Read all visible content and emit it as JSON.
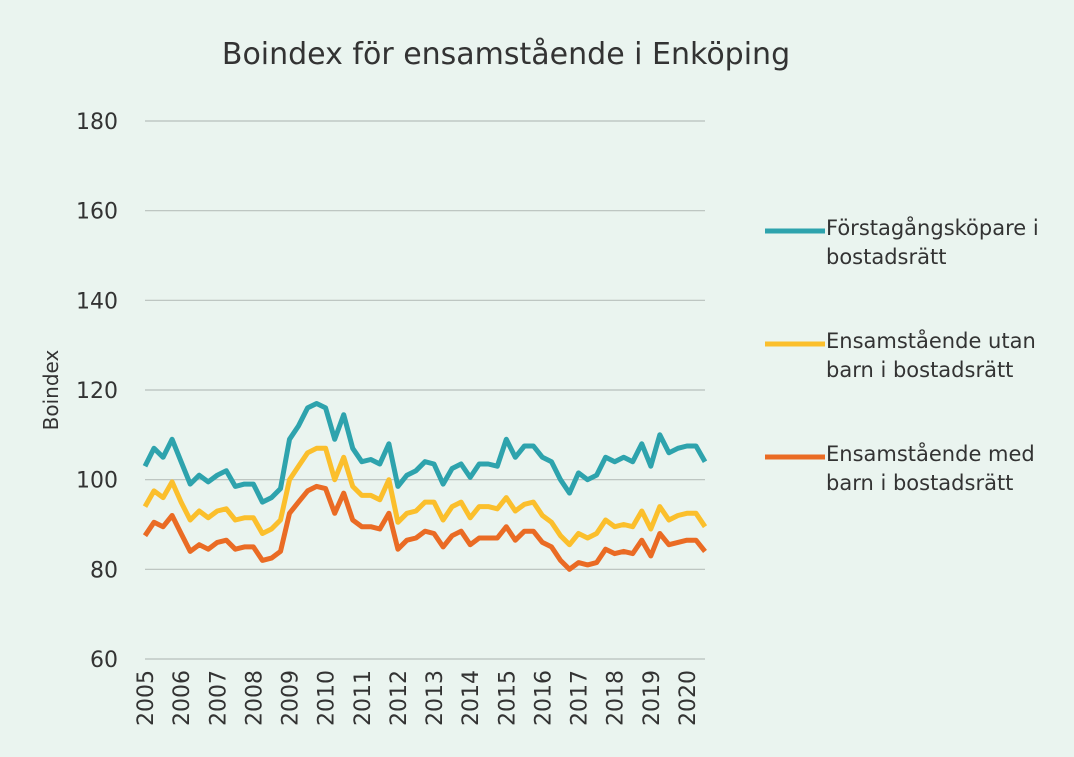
{
  "chart_data": {
    "type": "line",
    "title": "Boindex för ensamstående i Enköping",
    "y_label": "Boindex",
    "categories": [
      "2005",
      null,
      null,
      null,
      "2006",
      null,
      null,
      null,
      "2007",
      null,
      null,
      null,
      "2008",
      null,
      null,
      null,
      "2009",
      null,
      null,
      null,
      "2010",
      null,
      null,
      null,
      "2011",
      null,
      null,
      null,
      "2012",
      null,
      null,
      null,
      "2013",
      null,
      null,
      null,
      "2014",
      null,
      null,
      null,
      "2015",
      null,
      null,
      null,
      "2016",
      null,
      null,
      null,
      "2017",
      null,
      null,
      null,
      "2018",
      null,
      null,
      null,
      "2019",
      null,
      null,
      null,
      "2020",
      null,
      null
    ],
    "series": [
      {
        "name": "Förstagångsköpare i bostadsrätt",
        "color": "#2ea3ad",
        "values": [
          103,
          107,
          105,
          109,
          104,
          99,
          101,
          99.5,
          101,
          102,
          98.5,
          99,
          99,
          95,
          96,
          98,
          109,
          112,
          116,
          117,
          116,
          109,
          114.5,
          107,
          104,
          104.5,
          103.5,
          108,
          98.5,
          101,
          102,
          104,
          103.5,
          99,
          102.5,
          103.5,
          100.5,
          103.5,
          103.5,
          103,
          109,
          105,
          107.5,
          107.5,
          105,
          104,
          100,
          97,
          101.5,
          100,
          101,
          105,
          104,
          105,
          104,
          108,
          103,
          110,
          106,
          107,
          107.5,
          107.5,
          104
        ]
      },
      {
        "name": "Ensamstående utan barn i bostadsrätt",
        "color": "#fbbf2c",
        "values": [
          94,
          97.5,
          96,
          99.5,
          95,
          91,
          93,
          91.5,
          93,
          93.5,
          91,
          91.5,
          91.5,
          88,
          89,
          91,
          100,
          103,
          106,
          107,
          107,
          100,
          105,
          98.5,
          96.5,
          96.5,
          95.5,
          100,
          90.5,
          92.5,
          93,
          95,
          95,
          91,
          94,
          95,
          91.5,
          94,
          94,
          93.5,
          96,
          93,
          94.5,
          95,
          92,
          90.5,
          87.5,
          85.5,
          88,
          87,
          88,
          91,
          89.5,
          90,
          89.5,
          93,
          89,
          94,
          91,
          92,
          92.5,
          92.5,
          89.5
        ]
      },
      {
        "name": "Ensamstående med barn i bostadsrätt",
        "color": "#ea6b24",
        "values": [
          87.5,
          90.5,
          89.5,
          92,
          88,
          84,
          85.5,
          84.5,
          86,
          86.5,
          84.5,
          85,
          85,
          82,
          82.5,
          84,
          92.5,
          95,
          97.5,
          98.5,
          98,
          92.5,
          97,
          91,
          89.5,
          89.5,
          89,
          92.5,
          84.5,
          86.5,
          87,
          88.5,
          88,
          85,
          87.5,
          88.5,
          85.5,
          87,
          87,
          87,
          89.5,
          86.5,
          88.5,
          88.5,
          86,
          85,
          82,
          80,
          81.5,
          81,
          81.5,
          84.5,
          83.5,
          84,
          83.5,
          86.5,
          83,
          88,
          85.5,
          86,
          86.5,
          86.5,
          84
        ]
      }
    ],
    "ylim": [
      60,
      180
    ],
    "yticks": [
      60,
      80,
      100,
      120,
      140,
      160,
      180
    ],
    "grid": true
  }
}
